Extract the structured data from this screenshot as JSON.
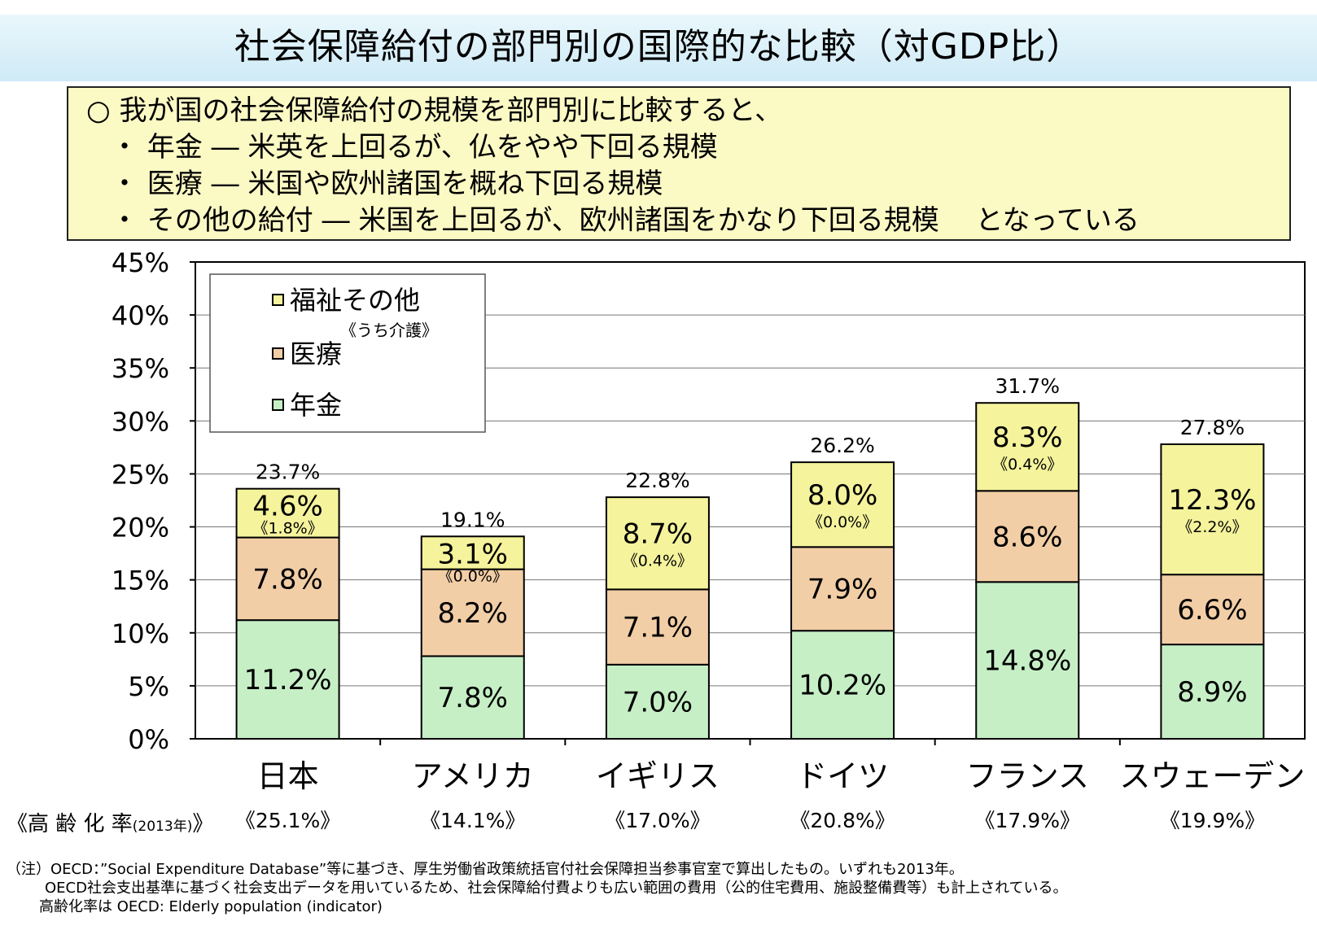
{
  "title": "社会保障給付の部門別の国際的な比較（対GDP比）",
  "summary": {
    "lead": "○ 我が国の社会保障給付の規模を部門別に比較すると、",
    "points": [
      "・ 年金 ― 米英を上回るが、仏をやや下回る規模",
      "・ 医療 ― 米国や欧州諸国を概ね下回る規模",
      "・ その他の給付 ― 米国を上回るが、欧州諸国をかなり下回る規模　 となっている"
    ]
  },
  "chart_data": {
    "type": "bar",
    "stacked": true,
    "categories": [
      "日本",
      "アメリカ",
      "イギリス",
      "ドイツ",
      "フランス",
      "スウェーデン"
    ],
    "series": [
      {
        "name": "年金",
        "values": [
          11.2,
          7.8,
          7.0,
          10.2,
          14.8,
          8.9
        ],
        "labels": [
          "11.2%",
          "7.8%",
          "7.0%",
          "10.2%",
          "14.8%",
          "8.9%"
        ],
        "color": "#c6efc6"
      },
      {
        "name": "医療",
        "values": [
          7.8,
          8.2,
          7.1,
          7.9,
          8.6,
          6.6
        ],
        "labels": [
          "7.8%",
          "8.2%",
          "7.1%",
          "7.9%",
          "8.6%",
          "6.6%"
        ],
        "color": "#f2cea6"
      },
      {
        "name": "福祉その他",
        "values": [
          4.6,
          3.1,
          8.7,
          8.0,
          8.3,
          12.3
        ],
        "labels": [
          "4.6%",
          "3.1%",
          "8.7%",
          "8.0%",
          "8.3%",
          "12.3%"
        ],
        "color": "#f5f39c"
      }
    ],
    "care_labels": [
      "《1.8%》",
      "《0.0%》",
      "《0.4%》",
      "《0.0%》",
      "《0.4%》",
      "《2.2%》"
    ],
    "totals": [
      "23.7%",
      "19.1%",
      "22.8%",
      "26.2%",
      "31.7%",
      "27.8%"
    ],
    "ylim": [
      0,
      45
    ],
    "yticks": [
      "0%",
      "5%",
      "10%",
      "15%",
      "20%",
      "25%",
      "30%",
      "35%",
      "40%",
      "45%"
    ],
    "grid": true,
    "legend": {
      "position": "top-left",
      "entries": [
        "福祉その他",
        "医療",
        "年金"
      ],
      "note": "《うち介護》"
    },
    "aging_label": "《高 齢 化 率",
    "aging_year": "(2013年)",
    "aging_close": "》",
    "aging_rates": [
      "《25.1%》",
      "《14.1%》",
      "《17.0%》",
      "《20.8%》",
      "《17.9%》",
      "《19.9%》"
    ]
  },
  "footnotes": [
    "（注）OECD：”Social Expenditure Database”等に基づき、厚生労働省政策統括官付社会保障担当参事官室で算出したもの。いずれも2013年。",
    "OECD社会支出基準に基づく社会支出データを用いているため、社会保障給付費よりも広い範囲の費用（公的住宅費用、施設整備費等）も計上されている。",
    "高齢化率は OECD: Elderly population (indicator)"
  ]
}
